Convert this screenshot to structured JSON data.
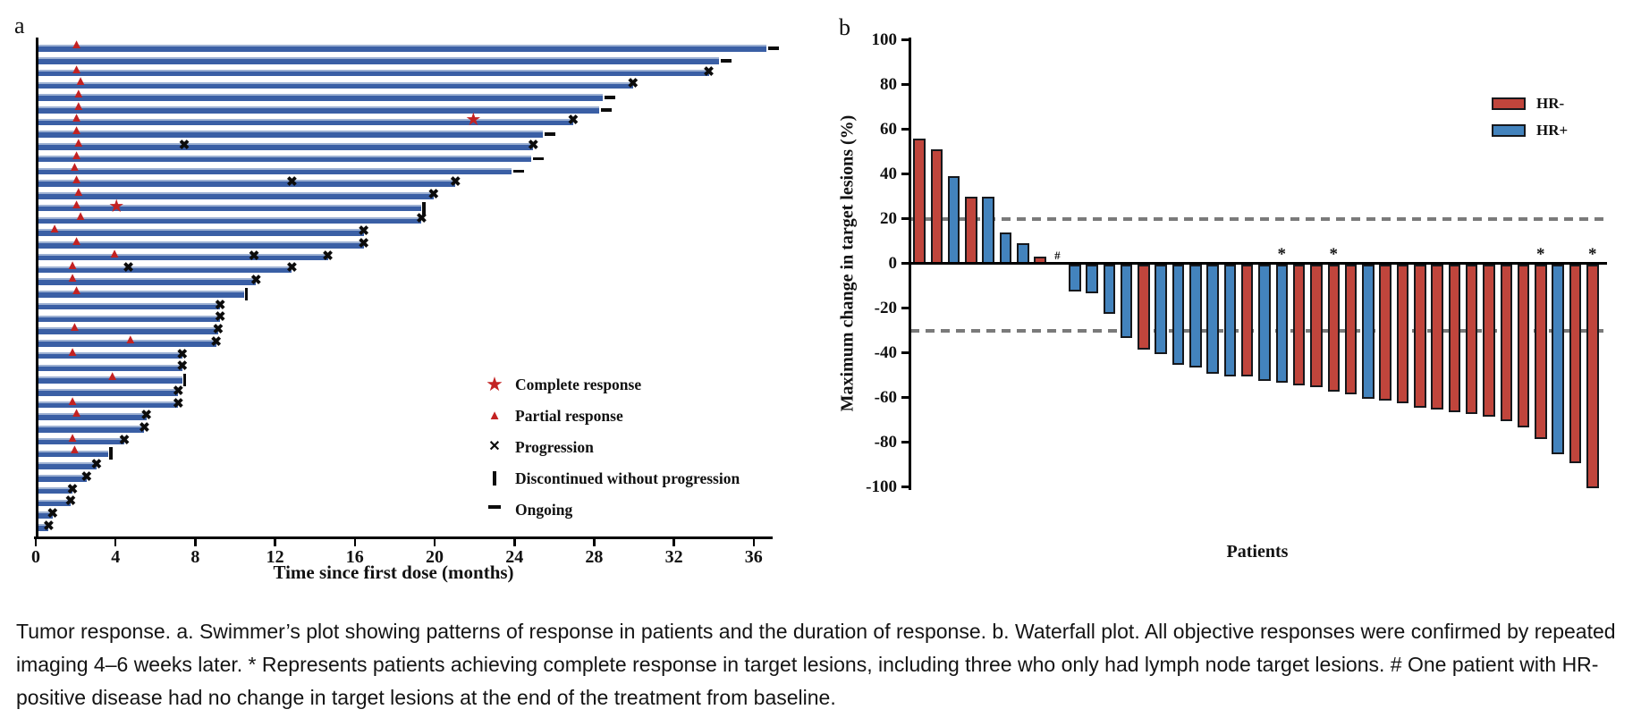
{
  "colors": {
    "swimmer_bar": "#3a5fa5",
    "marker_red": "#c32222",
    "hr_neg_red": "#c0453c",
    "hr_pos_blue": "#4383bd",
    "axis_black": "#000000",
    "ref_line_gray": "#7a7a7a"
  },
  "panel_a": {
    "label": "a",
    "x_axis_title": "Time since first dose (months)",
    "legend": [
      {
        "icon": "complete-response-star-icon",
        "glyph": "★",
        "label": "Complete response"
      },
      {
        "icon": "partial-response-triangle-icon",
        "glyph": "▲",
        "label": "Partial response"
      },
      {
        "icon": "progression-x-icon",
        "glyph": "✕",
        "label": "Progression"
      },
      {
        "icon": "discontinued-bar-icon",
        "glyph": "❙",
        "label": "Discontinued without progression"
      },
      {
        "icon": "ongoing-dash-icon",
        "glyph": "▬",
        "label": "Ongoing"
      }
    ]
  },
  "panel_b": {
    "label": "b",
    "y_axis_title": "Maximum change in target lesions (%)",
    "x_axis_title": "Patients",
    "legend": [
      {
        "group": "HR-",
        "color": "#c0453c"
      },
      {
        "group": "HR+",
        "color": "#4383bd"
      }
    ],
    "reference_lines": [
      20,
      -30
    ]
  },
  "caption": {
    "text": "Tumor response. a. Swimmer’s plot showing patterns of response in patients and the duration of response. b. Waterfall plot. All objective responses were confirmed by repeated imaging 4–6 weeks later. * Represents patients achieving complete response in target lesions, including three who only had lymph node target lesions. # One patient with HR-positive disease had no change in target lesions at the end of the treatment from baseline."
  },
  "chart_data": [
    {
      "type": "bar",
      "name": "swimmer_plot",
      "title": "",
      "xlabel": "Time since first dose (months)",
      "ylabel": "",
      "x_ticks": [
        0,
        4,
        8,
        12,
        16,
        20,
        24,
        28,
        32,
        36
      ],
      "xlim": [
        0,
        37
      ],
      "grid": false,
      "event_key": {
        "pr": "partial response (red triangle)",
        "cr": "complete response (red star)",
        "pd": "progression (black x)"
      },
      "end_key": [
        "progression",
        "ongoing",
        "discontinued"
      ],
      "patients": [
        {
          "months": 36.6,
          "end": "ongoing",
          "events": [
            {
              "t": 2.0,
              "type": "pr"
            }
          ]
        },
        {
          "months": 34.2,
          "end": "ongoing",
          "events": []
        },
        {
          "months": 33.7,
          "end": "progression",
          "events": [
            {
              "t": 2.0,
              "type": "pr"
            }
          ]
        },
        {
          "months": 29.9,
          "end": "progression",
          "events": [
            {
              "t": 2.2,
              "type": "pr"
            }
          ]
        },
        {
          "months": 28.4,
          "end": "ongoing",
          "events": [
            {
              "t": 2.1,
              "type": "pr"
            }
          ]
        },
        {
          "months": 28.2,
          "end": "ongoing",
          "events": [
            {
              "t": 2.1,
              "type": "pr"
            }
          ]
        },
        {
          "months": 26.9,
          "end": "progression",
          "events": [
            {
              "t": 2.0,
              "type": "pr"
            },
            {
              "t": 21.9,
              "type": "cr"
            }
          ]
        },
        {
          "months": 25.4,
          "end": "ongoing",
          "events": [
            {
              "t": 2.0,
              "type": "pr"
            }
          ]
        },
        {
          "months": 24.9,
          "end": "progression",
          "events": [
            {
              "t": 2.1,
              "type": "pr"
            },
            {
              "t": 7.4,
              "type": "pd"
            }
          ]
        },
        {
          "months": 24.8,
          "end": "ongoing",
          "events": [
            {
              "t": 2.0,
              "type": "pr"
            }
          ]
        },
        {
          "months": 23.8,
          "end": "ongoing",
          "events": [
            {
              "t": 1.9,
              "type": "pr"
            }
          ]
        },
        {
          "months": 21.0,
          "end": "progression",
          "events": [
            {
              "t": 2.0,
              "type": "pr"
            },
            {
              "t": 12.8,
              "type": "pd"
            }
          ]
        },
        {
          "months": 19.9,
          "end": "progression",
          "events": [
            {
              "t": 2.1,
              "type": "pr"
            }
          ]
        },
        {
          "months": 19.3,
          "end": "discontinued",
          "events": [
            {
              "t": 2.0,
              "type": "pr"
            },
            {
              "t": 4.0,
              "type": "cr"
            }
          ]
        },
        {
          "months": 19.3,
          "end": "progression",
          "events": [
            {
              "t": 2.2,
              "type": "pr"
            }
          ]
        },
        {
          "months": 16.4,
          "end": "progression",
          "events": [
            {
              "t": 0.9,
              "type": "pr"
            }
          ]
        },
        {
          "months": 16.4,
          "end": "progression",
          "events": [
            {
              "t": 2.0,
              "type": "pr"
            }
          ]
        },
        {
          "months": 14.6,
          "end": "progression",
          "events": [
            {
              "t": 3.9,
              "type": "pr"
            },
            {
              "t": 10.9,
              "type": "pd"
            }
          ]
        },
        {
          "months": 12.8,
          "end": "progression",
          "events": [
            {
              "t": 1.8,
              "type": "pr"
            },
            {
              "t": 4.6,
              "type": "pd"
            }
          ]
        },
        {
          "months": 11.0,
          "end": "progression",
          "events": [
            {
              "t": 1.8,
              "type": "pr"
            }
          ]
        },
        {
          "months": 10.4,
          "end": "discontinued",
          "events": [
            {
              "t": 2.0,
              "type": "pr"
            }
          ]
        },
        {
          "months": 9.2,
          "end": "progression",
          "events": []
        },
        {
          "months": 9.2,
          "end": "progression",
          "events": []
        },
        {
          "months": 9.1,
          "end": "progression",
          "events": [
            {
              "t": 1.9,
              "type": "pr"
            }
          ]
        },
        {
          "months": 9.0,
          "end": "progression",
          "events": [
            {
              "t": 4.7,
              "type": "pr"
            }
          ]
        },
        {
          "months": 7.3,
          "end": "progression",
          "events": [
            {
              "t": 1.8,
              "type": "pr"
            }
          ]
        },
        {
          "months": 7.3,
          "end": "progression",
          "events": []
        },
        {
          "months": 7.3,
          "end": "discontinued",
          "events": [
            {
              "t": 3.8,
              "type": "pr"
            }
          ]
        },
        {
          "months": 7.1,
          "end": "progression",
          "events": []
        },
        {
          "months": 7.1,
          "end": "progression",
          "events": [
            {
              "t": 1.8,
              "type": "pr"
            }
          ]
        },
        {
          "months": 5.5,
          "end": "progression",
          "events": [
            {
              "t": 2.0,
              "type": "pr"
            }
          ]
        },
        {
          "months": 5.4,
          "end": "progression",
          "events": []
        },
        {
          "months": 4.4,
          "end": "progression",
          "events": [
            {
              "t": 1.8,
              "type": "pr"
            }
          ]
        },
        {
          "months": 3.6,
          "end": "discontinued",
          "events": [
            {
              "t": 1.9,
              "type": "pr"
            }
          ]
        },
        {
          "months": 3.0,
          "end": "progression",
          "events": []
        },
        {
          "months": 2.5,
          "end": "progression",
          "events": []
        },
        {
          "months": 1.8,
          "end": "progression",
          "events": []
        },
        {
          "months": 1.7,
          "end": "progression",
          "events": []
        },
        {
          "months": 0.8,
          "end": "progression",
          "events": []
        },
        {
          "months": 0.6,
          "end": "progression",
          "events": []
        }
      ]
    },
    {
      "type": "bar",
      "name": "waterfall_plot",
      "title": "",
      "xlabel": "Patients",
      "ylabel": "Maximum change in target lesions (%)",
      "ylim": [
        -100,
        100
      ],
      "y_ticks": [
        100,
        80,
        60,
        40,
        20,
        0,
        -20,
        -40,
        -60,
        -80,
        -100
      ],
      "reference_lines": [
        20,
        -30
      ],
      "legend_position": "upper right",
      "grid": false,
      "bars": [
        {
          "v": 56,
          "group": "HR-"
        },
        {
          "v": 51,
          "group": "HR-"
        },
        {
          "v": 39,
          "group": "HR+"
        },
        {
          "v": 30,
          "group": "HR-"
        },
        {
          "v": 30,
          "group": "HR+"
        },
        {
          "v": 14,
          "group": "HR+"
        },
        {
          "v": 9,
          "group": "HR+"
        },
        {
          "v": 3,
          "group": "HR-"
        },
        {
          "v": 0,
          "group": "HR+",
          "mark": "#"
        },
        {
          "v": -12,
          "group": "HR+"
        },
        {
          "v": -13,
          "group": "HR+"
        },
        {
          "v": -22,
          "group": "HR+"
        },
        {
          "v": -33,
          "group": "HR+"
        },
        {
          "v": -38,
          "group": "HR-"
        },
        {
          "v": -40,
          "group": "HR+"
        },
        {
          "v": -45,
          "group": "HR+"
        },
        {
          "v": -46,
          "group": "HR+"
        },
        {
          "v": -49,
          "group": "HR+"
        },
        {
          "v": -50,
          "group": "HR+"
        },
        {
          "v": -50,
          "group": "HR-"
        },
        {
          "v": -52,
          "group": "HR+"
        },
        {
          "v": -53,
          "group": "HR+",
          "mark": "*"
        },
        {
          "v": -54,
          "group": "HR-"
        },
        {
          "v": -55,
          "group": "HR-"
        },
        {
          "v": -57,
          "group": "HR-",
          "mark": "*"
        },
        {
          "v": -58,
          "group": "HR-"
        },
        {
          "v": -60,
          "group": "HR+"
        },
        {
          "v": -61,
          "group": "HR-"
        },
        {
          "v": -62,
          "group": "HR-"
        },
        {
          "v": -64,
          "group": "HR-"
        },
        {
          "v": -65,
          "group": "HR-"
        },
        {
          "v": -66,
          "group": "HR-"
        },
        {
          "v": -67,
          "group": "HR-"
        },
        {
          "v": -68,
          "group": "HR-"
        },
        {
          "v": -70,
          "group": "HR-"
        },
        {
          "v": -73,
          "group": "HR-"
        },
        {
          "v": -78,
          "group": "HR-",
          "mark": "*"
        },
        {
          "v": -85,
          "group": "HR+"
        },
        {
          "v": -89,
          "group": "HR-"
        },
        {
          "v": -100,
          "group": "HR-",
          "mark": "*"
        }
      ]
    }
  ]
}
